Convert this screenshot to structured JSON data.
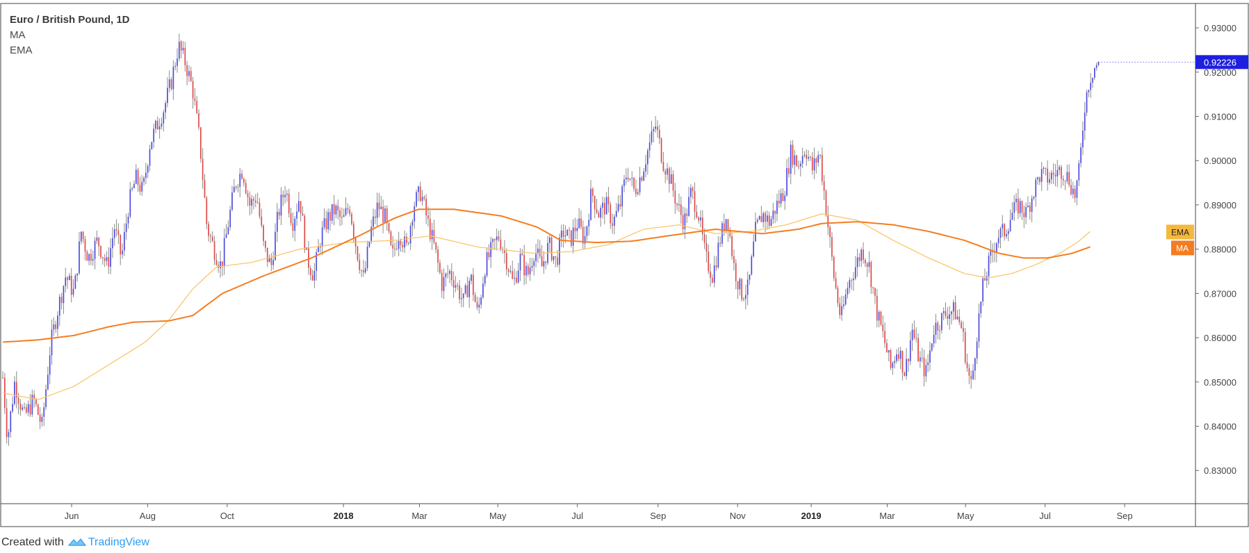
{
  "header": {
    "symbol_title": "Euro / British Pound, 1D",
    "indicator_1": "MA",
    "indicator_2": "EMA"
  },
  "footer": {
    "created_with": "Created with",
    "brand": "TradingView"
  },
  "colors": {
    "up": "#4a4ae0",
    "down": "#e04848",
    "wick": "#8a8a8a",
    "ma": "#f57c1f",
    "ema": "#fbc56a",
    "price_tag": "#1f1fe0",
    "ema_tag": "#f5b83d",
    "ma_tag": "#f57c1f",
    "border": "#444444"
  },
  "chart_data": {
    "type": "candlestick",
    "title": "Euro / British Pound, 1D",
    "ylim": [
      0.8225,
      0.9355
    ],
    "yticks": [
      "0.93000",
      "0.92000",
      "0.91000",
      "0.90000",
      "0.89000",
      "0.88000",
      "0.87000",
      "0.86000",
      "0.85000",
      "0.84000",
      "0.83000"
    ],
    "ytick_values": [
      0.93,
      0.92,
      0.91,
      0.9,
      0.89,
      0.88,
      0.87,
      0.86,
      0.85,
      0.84,
      0.83
    ],
    "xticks": [
      {
        "label": "Jun",
        "bold": false,
        "t": 0.058
      },
      {
        "label": "Aug",
        "bold": false,
        "t": 0.122
      },
      {
        "label": "Oct",
        "bold": false,
        "t": 0.189
      },
      {
        "label": "2018",
        "bold": true,
        "t": 0.287
      },
      {
        "label": "Mar",
        "bold": false,
        "t": 0.351
      },
      {
        "label": "May",
        "bold": false,
        "t": 0.417
      },
      {
        "label": "Jul",
        "bold": false,
        "t": 0.484
      },
      {
        "label": "Sep",
        "bold": false,
        "t": 0.552
      },
      {
        "label": "Nov",
        "bold": false,
        "t": 0.619
      },
      {
        "label": "2019",
        "bold": true,
        "t": 0.681
      },
      {
        "label": "Mar",
        "bold": false,
        "t": 0.745
      },
      {
        "label": "May",
        "bold": false,
        "t": 0.811
      },
      {
        "label": "Jul",
        "bold": false,
        "t": 0.878
      },
      {
        "label": "Sep",
        "bold": false,
        "t": 0.945
      }
    ],
    "last_price": "0.92226",
    "last_price_value": 0.92226,
    "price_path": [
      [
        0.0,
        0.851
      ],
      [
        0.004,
        0.837
      ],
      [
        0.01,
        0.85
      ],
      [
        0.018,
        0.842
      ],
      [
        0.026,
        0.846
      ],
      [
        0.033,
        0.84
      ],
      [
        0.04,
        0.858
      ],
      [
        0.046,
        0.866
      ],
      [
        0.053,
        0.874
      ],
      [
        0.06,
        0.87
      ],
      [
        0.066,
        0.884
      ],
      [
        0.072,
        0.878
      ],
      [
        0.08,
        0.882
      ],
      [
        0.088,
        0.876
      ],
      [
        0.094,
        0.885
      ],
      [
        0.1,
        0.878
      ],
      [
        0.106,
        0.89
      ],
      [
        0.112,
        0.896
      ],
      [
        0.118,
        0.893
      ],
      [
        0.124,
        0.904
      ],
      [
        0.13,
        0.908
      ],
      [
        0.136,
        0.912
      ],
      [
        0.142,
        0.918
      ],
      [
        0.148,
        0.926
      ],
      [
        0.154,
        0.922
      ],
      [
        0.16,
        0.916
      ],
      [
        0.166,
        0.904
      ],
      [
        0.172,
        0.885
      ],
      [
        0.178,
        0.88
      ],
      [
        0.184,
        0.876
      ],
      [
        0.19,
        0.886
      ],
      [
        0.196,
        0.895
      ],
      [
        0.202,
        0.898
      ],
      [
        0.208,
        0.89
      ],
      [
        0.214,
        0.892
      ],
      [
        0.22,
        0.88
      ],
      [
        0.226,
        0.876
      ],
      [
        0.232,
        0.888
      ],
      [
        0.238,
        0.894
      ],
      [
        0.244,
        0.886
      ],
      [
        0.25,
        0.892
      ],
      [
        0.256,
        0.878
      ],
      [
        0.262,
        0.874
      ],
      [
        0.268,
        0.883
      ],
      [
        0.274,
        0.887
      ],
      [
        0.28,
        0.889
      ],
      [
        0.286,
        0.886
      ],
      [
        0.292,
        0.89
      ],
      [
        0.298,
        0.88
      ],
      [
        0.304,
        0.873
      ],
      [
        0.31,
        0.884
      ],
      [
        0.316,
        0.89
      ],
      [
        0.322,
        0.887
      ],
      [
        0.328,
        0.878
      ],
      [
        0.334,
        0.884
      ],
      [
        0.34,
        0.88
      ],
      [
        0.346,
        0.89
      ],
      [
        0.352,
        0.893
      ],
      [
        0.358,
        0.886
      ],
      [
        0.364,
        0.88
      ],
      [
        0.37,
        0.872
      ],
      [
        0.376,
        0.875
      ],
      [
        0.382,
        0.872
      ],
      [
        0.388,
        0.868
      ],
      [
        0.394,
        0.874
      ],
      [
        0.4,
        0.865
      ],
      [
        0.406,
        0.876
      ],
      [
        0.412,
        0.88
      ],
      [
        0.418,
        0.883
      ],
      [
        0.424,
        0.878
      ],
      [
        0.43,
        0.872
      ],
      [
        0.436,
        0.878
      ],
      [
        0.442,
        0.874
      ],
      [
        0.448,
        0.88
      ],
      [
        0.454,
        0.876
      ],
      [
        0.46,
        0.881
      ],
      [
        0.466,
        0.877
      ],
      [
        0.472,
        0.884
      ],
      [
        0.478,
        0.882
      ],
      [
        0.484,
        0.886
      ],
      [
        0.49,
        0.882
      ],
      [
        0.496,
        0.893
      ],
      [
        0.502,
        0.888
      ],
      [
        0.508,
        0.89
      ],
      [
        0.514,
        0.886
      ],
      [
        0.52,
        0.89
      ],
      [
        0.526,
        0.898
      ],
      [
        0.532,
        0.893
      ],
      [
        0.538,
        0.897
      ],
      [
        0.544,
        0.903
      ],
      [
        0.55,
        0.908
      ],
      [
        0.556,
        0.9
      ],
      [
        0.562,
        0.896
      ],
      [
        0.568,
        0.89
      ],
      [
        0.574,
        0.886
      ],
      [
        0.58,
        0.893
      ],
      [
        0.586,
        0.888
      ],
      [
        0.592,
        0.878
      ],
      [
        0.598,
        0.874
      ],
      [
        0.604,
        0.882
      ],
      [
        0.61,
        0.888
      ],
      [
        0.616,
        0.876
      ],
      [
        0.622,
        0.87
      ],
      [
        0.628,
        0.871
      ],
      [
        0.634,
        0.884
      ],
      [
        0.64,
        0.888
      ],
      [
        0.646,
        0.886
      ],
      [
        0.652,
        0.89
      ],
      [
        0.658,
        0.893
      ],
      [
        0.664,
        0.902
      ],
      [
        0.67,
        0.899
      ],
      [
        0.676,
        0.903
      ],
      [
        0.682,
        0.898
      ],
      [
        0.688,
        0.902
      ],
      [
        0.694,
        0.888
      ],
      [
        0.7,
        0.874
      ],
      [
        0.706,
        0.864
      ],
      [
        0.712,
        0.872
      ],
      [
        0.718,
        0.876
      ],
      [
        0.724,
        0.88
      ],
      [
        0.73,
        0.876
      ],
      [
        0.736,
        0.866
      ],
      [
        0.742,
        0.86
      ],
      [
        0.748,
        0.853
      ],
      [
        0.754,
        0.858
      ],
      [
        0.76,
        0.852
      ],
      [
        0.766,
        0.862
      ],
      [
        0.772,
        0.855
      ],
      [
        0.778,
        0.852
      ],
      [
        0.784,
        0.862
      ],
      [
        0.79,
        0.864
      ],
      [
        0.796,
        0.866
      ],
      [
        0.802,
        0.866
      ],
      [
        0.808,
        0.862
      ],
      [
        0.813,
        0.852
      ],
      [
        0.816,
        0.849
      ],
      [
        0.82,
        0.86
      ],
      [
        0.826,
        0.872
      ],
      [
        0.832,
        0.878
      ],
      [
        0.838,
        0.883
      ],
      [
        0.844,
        0.884
      ],
      [
        0.85,
        0.888
      ],
      [
        0.856,
        0.89
      ],
      [
        0.862,
        0.888
      ],
      [
        0.868,
        0.893
      ],
      [
        0.874,
        0.897
      ],
      [
        0.88,
        0.896
      ],
      [
        0.886,
        0.897
      ],
      [
        0.892,
        0.898
      ],
      [
        0.898,
        0.896
      ],
      [
        0.903,
        0.892
      ],
      [
        0.907,
        0.898
      ],
      [
        0.911,
        0.912
      ],
      [
        0.915,
        0.918
      ],
      [
        0.919,
        0.921
      ],
      [
        0.923,
        0.922
      ]
    ],
    "ma_path": [
      [
        0.0,
        0.859
      ],
      [
        0.03,
        0.8595
      ],
      [
        0.06,
        0.8605
      ],
      [
        0.09,
        0.8625
      ],
      [
        0.11,
        0.8635
      ],
      [
        0.14,
        0.8638
      ],
      [
        0.16,
        0.865
      ],
      [
        0.185,
        0.87
      ],
      [
        0.22,
        0.874
      ],
      [
        0.26,
        0.878
      ],
      [
        0.3,
        0.883
      ],
      [
        0.33,
        0.887
      ],
      [
        0.35,
        0.889
      ],
      [
        0.38,
        0.889
      ],
      [
        0.42,
        0.8875
      ],
      [
        0.45,
        0.885
      ],
      [
        0.47,
        0.882
      ],
      [
        0.5,
        0.8815
      ],
      [
        0.53,
        0.8818
      ],
      [
        0.56,
        0.883
      ],
      [
        0.6,
        0.8845
      ],
      [
        0.64,
        0.8835
      ],
      [
        0.67,
        0.8845
      ],
      [
        0.69,
        0.8858
      ],
      [
        0.72,
        0.8862
      ],
      [
        0.75,
        0.8855
      ],
      [
        0.78,
        0.884
      ],
      [
        0.81,
        0.882
      ],
      [
        0.84,
        0.879
      ],
      [
        0.86,
        0.878
      ],
      [
        0.88,
        0.878
      ],
      [
        0.9,
        0.879
      ],
      [
        0.916,
        0.8805
      ]
    ],
    "ema_path": [
      [
        0.0,
        0.8475
      ],
      [
        0.03,
        0.846
      ],
      [
        0.06,
        0.849
      ],
      [
        0.09,
        0.854
      ],
      [
        0.12,
        0.859
      ],
      [
        0.14,
        0.864
      ],
      [
        0.16,
        0.871
      ],
      [
        0.18,
        0.876
      ],
      [
        0.21,
        0.877
      ],
      [
        0.25,
        0.88
      ],
      [
        0.29,
        0.8815
      ],
      [
        0.33,
        0.882
      ],
      [
        0.36,
        0.883
      ],
      [
        0.4,
        0.8805
      ],
      [
        0.45,
        0.879
      ],
      [
        0.48,
        0.8795
      ],
      [
        0.51,
        0.881
      ],
      [
        0.54,
        0.8845
      ],
      [
        0.57,
        0.8855
      ],
      [
        0.6,
        0.8835
      ],
      [
        0.63,
        0.884
      ],
      [
        0.66,
        0.8855
      ],
      [
        0.69,
        0.888
      ],
      [
        0.72,
        0.8865
      ],
      [
        0.75,
        0.882
      ],
      [
        0.78,
        0.878
      ],
      [
        0.81,
        0.8745
      ],
      [
        0.83,
        0.8735
      ],
      [
        0.85,
        0.8745
      ],
      [
        0.87,
        0.8765
      ],
      [
        0.89,
        0.879
      ],
      [
        0.905,
        0.8815
      ],
      [
        0.916,
        0.884
      ]
    ],
    "ema_tag_value": 0.8838,
    "ma_tag_value": 0.8805,
    "tag_ema_label": "EMA",
    "tag_ma_label": "MA"
  }
}
